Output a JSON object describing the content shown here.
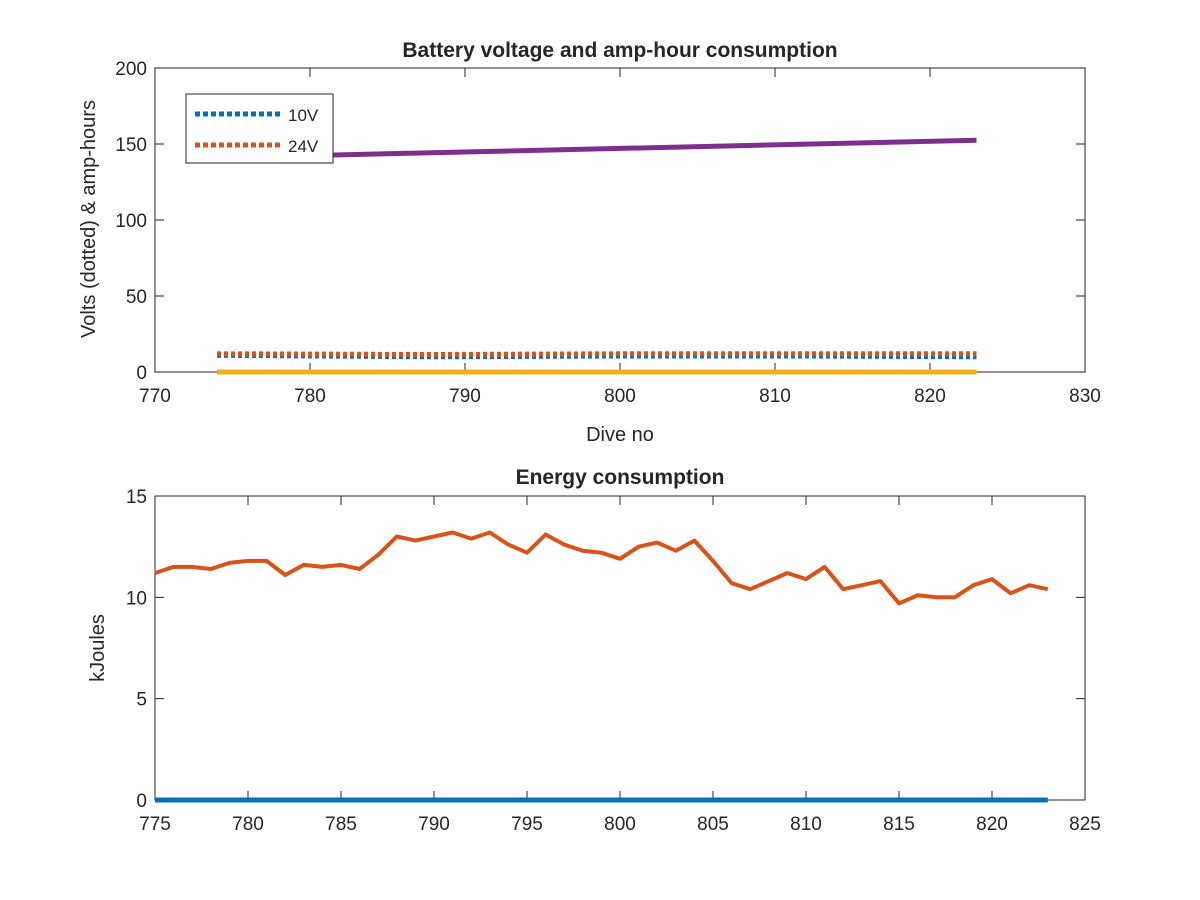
{
  "chart_data": [
    {
      "type": "line",
      "title": "Battery voltage and amp-hour consumption",
      "xlabel": "Dive no",
      "ylabel": "Volts (dotted) & amp-hours",
      "xlim": [
        770,
        830
      ],
      "ylim": [
        0,
        200
      ],
      "xticks": [
        770,
        780,
        790,
        800,
        810,
        820,
        830
      ],
      "yticks": [
        0,
        50,
        100,
        150,
        200
      ],
      "legend_position": "top-left",
      "grid": false,
      "series": [
        {
          "name": "10V",
          "style": "dotted",
          "color": "#0072BD",
          "x": [
            774,
            788,
            800,
            812,
            823
          ],
          "y": [
            11,
            10,
            10.5,
            10.5,
            10
          ]
        },
        {
          "name": "24V",
          "style": "dotted",
          "color": "#D95319",
          "x": [
            774,
            788,
            800,
            812,
            823
          ],
          "y": [
            12,
            11.5,
            12,
            12,
            12
          ]
        },
        {
          "style": "solid",
          "color": "#7E2F8E",
          "x": [
            774,
            823
          ],
          "y": [
            141,
            152.5
          ]
        },
        {
          "style": "solid",
          "color": "#EDB120",
          "x": [
            774,
            823
          ],
          "y": [
            0,
            0
          ]
        }
      ]
    },
    {
      "type": "line",
      "title": "Energy consumption",
      "xlabel": "",
      "ylabel": "kJoules",
      "xlim": [
        775,
        825
      ],
      "ylim": [
        0,
        15
      ],
      "xticks": [
        775,
        780,
        785,
        790,
        795,
        800,
        805,
        810,
        815,
        820,
        825
      ],
      "yticks": [
        0,
        5,
        10,
        15
      ],
      "grid": false,
      "series": [
        {
          "style": "solid",
          "color": "#D95319",
          "x": [
            775,
            776,
            777,
            778,
            779,
            780,
            781,
            782,
            783,
            784,
            785,
            786,
            787,
            788,
            789,
            790,
            791,
            792,
            793,
            794,
            795,
            796,
            797,
            798,
            799,
            800,
            801,
            802,
            803,
            804,
            805,
            806,
            807,
            808,
            809,
            810,
            811,
            812,
            813,
            814,
            815,
            816,
            817,
            818,
            819,
            820,
            821,
            822,
            823
          ],
          "y": [
            11.2,
            11.5,
            11.5,
            11.4,
            11.7,
            11.8,
            11.8,
            11.1,
            11.6,
            11.5,
            11.6,
            11.4,
            12.1,
            13.0,
            12.8,
            13.0,
            13.2,
            12.9,
            13.2,
            12.6,
            12.2,
            13.1,
            12.6,
            12.3,
            12.2,
            11.9,
            12.5,
            12.7,
            12.3,
            12.8,
            11.8,
            10.7,
            10.4,
            10.8,
            11.2,
            10.9,
            11.5,
            10.4,
            10.6,
            10.8,
            9.7,
            10.1,
            10.0,
            10.0,
            10.6,
            10.9,
            10.2,
            10.6,
            10.4
          ]
        },
        {
          "style": "solid",
          "color": "#0072BD",
          "x": [
            775,
            823
          ],
          "y": [
            0,
            0
          ]
        }
      ]
    }
  ]
}
